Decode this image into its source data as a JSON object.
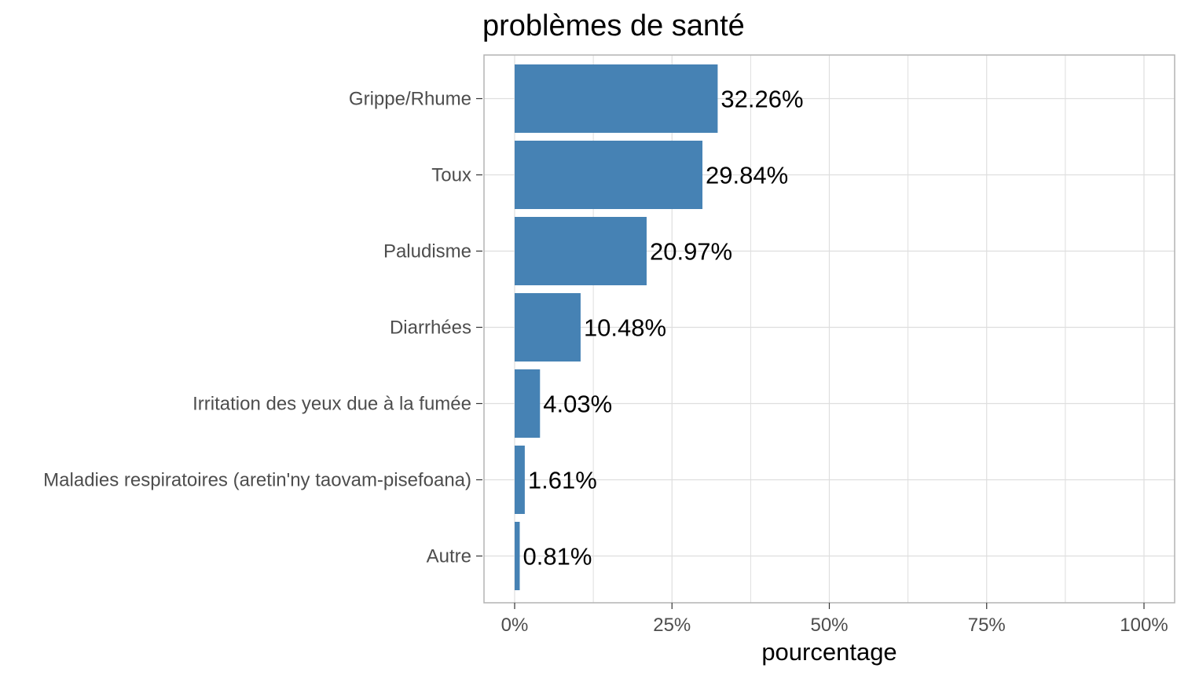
{
  "chart_data": {
    "type": "bar",
    "orientation": "horizontal",
    "title": "problèmes de santé",
    "xlabel": "pourcentage",
    "ylabel": "",
    "categories": [
      "Grippe/Rhume",
      "Toux",
      "Paludisme",
      "Diarrhées",
      "Irritation des yeux due à la fumée",
      "Maladies respiratoires (aretin'ny taovam-pisefoana)",
      "Autre"
    ],
    "values": [
      32.26,
      29.84,
      20.97,
      10.48,
      4.03,
      1.61,
      0.81
    ],
    "data_labels": [
      "32.26%",
      "29.84%",
      "20.97%",
      "10.48%",
      "4.03%",
      "1.61%",
      "0.81%"
    ],
    "xlim": [
      0,
      100
    ],
    "xticks": [
      0,
      25,
      50,
      75,
      100
    ],
    "xtick_labels": [
      "0%",
      "25%",
      "50%",
      "75%",
      "100%"
    ],
    "grid": true,
    "bar_color": "#4682b4",
    "grid_color": "#dedede",
    "panel_border_color": "#b3b3b3"
  }
}
